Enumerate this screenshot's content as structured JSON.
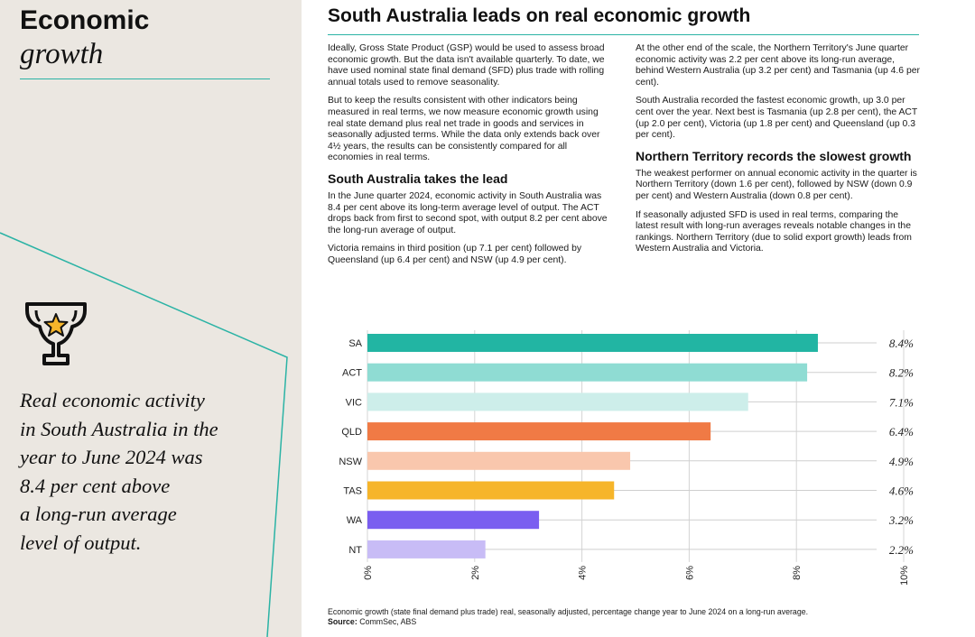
{
  "sidebar": {
    "title_line1": "Economic",
    "title_line2": "growth",
    "icon": "trophy-star-icon",
    "quote_lines": [
      "Real economic activity",
      "in South Australia in the",
      "year to June 2024 was",
      "8.4 per cent above",
      "a long-run average",
      "level of output."
    ]
  },
  "main": {
    "title": "South Australia leads on real economic growth",
    "col1": {
      "p1": "Ideally, Gross State Product (GSP) would be used to assess broad economic growth. But the data isn't available quarterly. To date, we have used nominal state final demand (SFD) plus trade with rolling annual totals used to remove seasonality.",
      "p2": "But to keep the results consistent with other indicators being measured in real terms, we now measure economic growth using real state demand plus real net trade in goods and services in seasonally adjusted terms. While the data only extends back over 4½ years, the results can be consistently compared for all economies in real terms.",
      "h1": "South Australia takes the lead",
      "p3": "In the June quarter 2024, economic activity in South Australia was 8.4 per cent above its long-term average level of output. The ACT drops back from first to second spot, with output 8.2 per cent above the long-run average of output.",
      "p4": "Victoria remains in third position (up 7.1 per cent) followed by Queensland (up 6.4 per cent) and NSW (up 4.9 per cent)."
    },
    "col2": {
      "p1": "At the other end of the scale, the Northern Territory's June quarter economic activity was 2.2 per cent above its long-run average, behind Western Australia (up 3.2 per cent) and Tasmania (up 4.6 per cent).",
      "p2": "South Australia recorded the fastest economic growth, up 3.0 per cent over the year. Next best is Tasmania (up 2.8 per cent), the ACT (up 2.0 per cent), Victoria (up 1.8 per cent) and Queensland (up 0.3 per cent).",
      "h1": "Northern Territory records the slowest growth",
      "p3": "The weakest performer on annual economic activity in the quarter is Northern Territory (down 1.6 per cent), followed by NSW (down 0.9 per cent) and Western Australia (down 0.8 per cent).",
      "p4": "If seasonally adjusted SFD is used in real terms, comparing the latest result with long-run averages reveals notable changes in the rankings. Northern Territory (due to solid export growth) leads from Western Australia and Victoria."
    },
    "caption": "Economic growth (state final demand plus trade) real, seasonally adjusted, percentage change year to June 2024 on a long-run average.",
    "source_label": "Source:",
    "source": "CommSec, ABS"
  },
  "colors": {
    "teal_accent": "#2bb3a5",
    "sidebar_bg": "#ebe7e1"
  },
  "chart_data": {
    "type": "bar",
    "orientation": "horizontal",
    "categories": [
      "SA",
      "ACT",
      "VIC",
      "QLD",
      "NSW",
      "TAS",
      "WA",
      "NT"
    ],
    "values": [
      8.4,
      8.2,
      7.1,
      6.4,
      4.9,
      4.6,
      3.2,
      2.2
    ],
    "value_labels": [
      "8.4%",
      "8.2%",
      "7.1%",
      "6.4%",
      "4.9%",
      "4.6%",
      "3.2%",
      "2.2%"
    ],
    "colors": [
      "#22b5a3",
      "#8fdcd3",
      "#cdeeea",
      "#f07a45",
      "#f9c7ad",
      "#f6b52a",
      "#7a5ef0",
      "#c8bcf6"
    ],
    "xlim": [
      0,
      10
    ],
    "xticks": [
      0,
      2,
      4,
      6,
      8,
      10
    ],
    "xtick_labels": [
      "0%",
      "2%",
      "4%",
      "6%",
      "8%",
      "10%"
    ],
    "xlabel": "",
    "ylabel": "",
    "grid": true
  }
}
